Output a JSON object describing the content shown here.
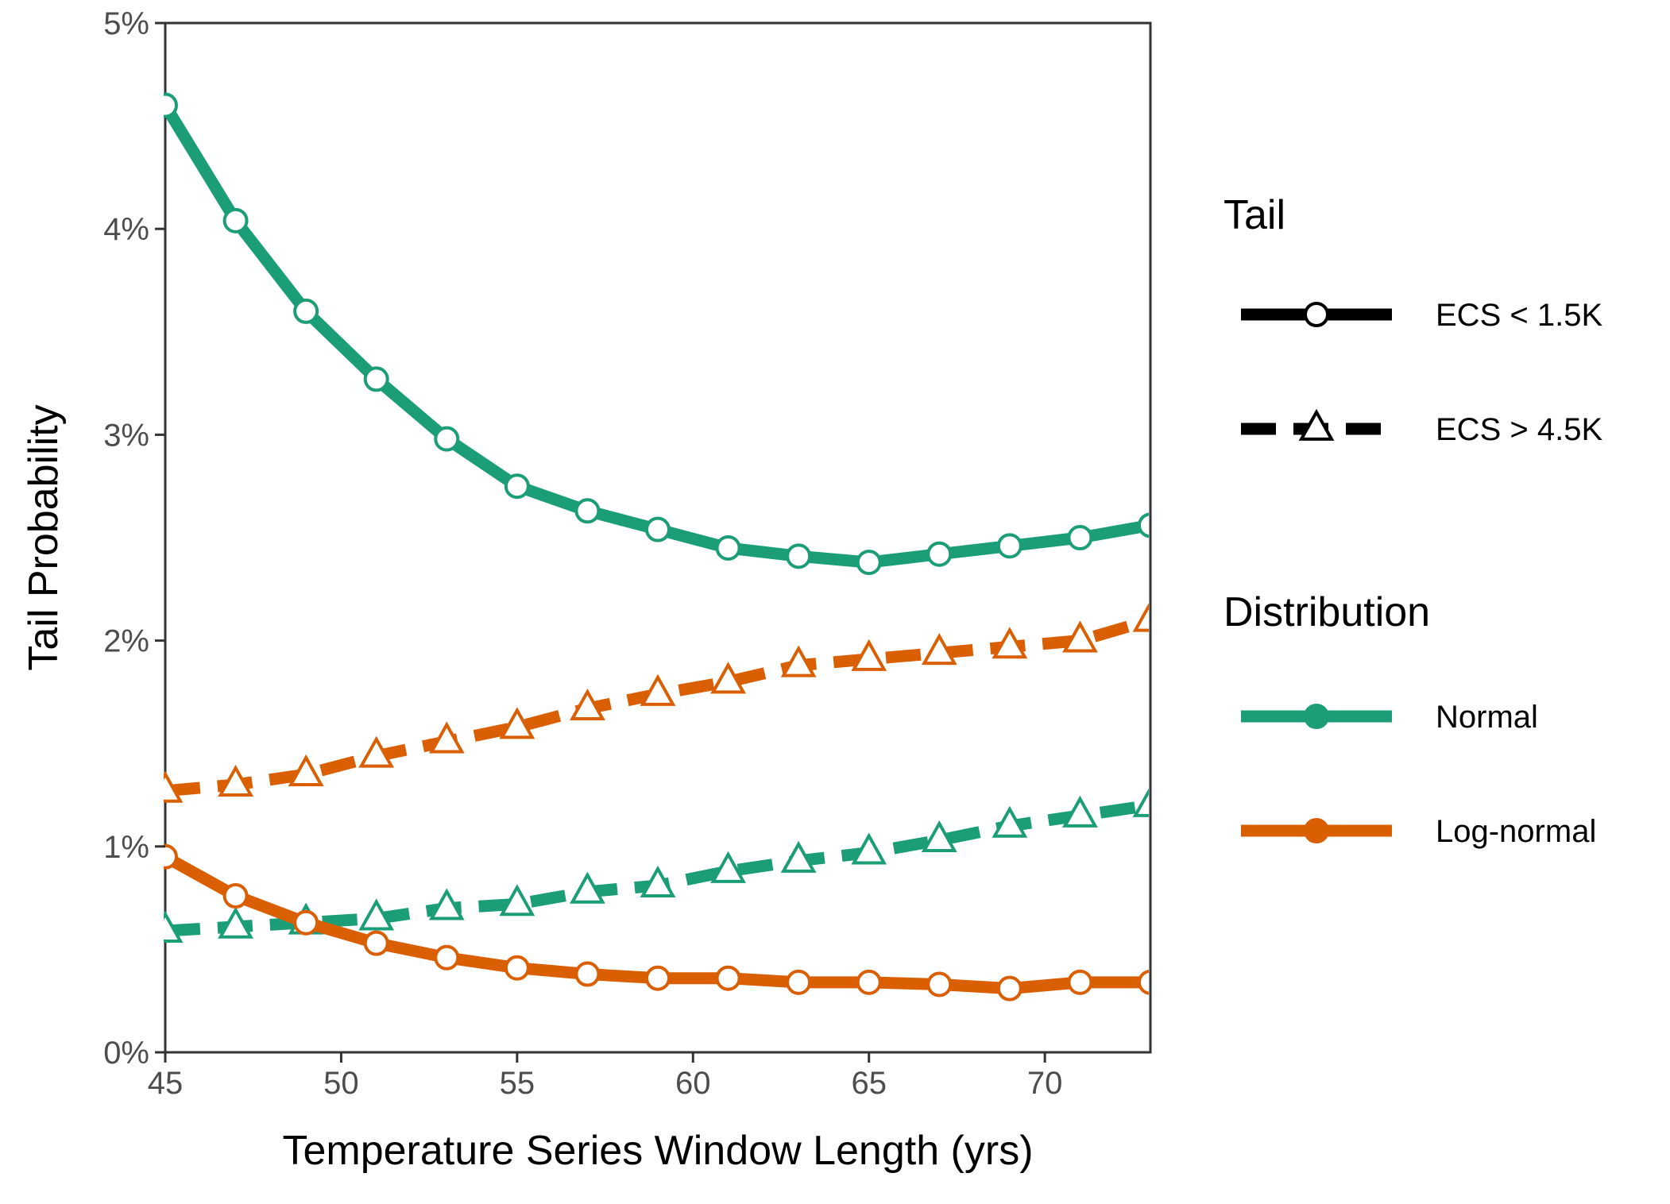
{
  "chart_data": {
    "type": "line",
    "title": "",
    "xlabel": "Temperature Series Window Length (yrs)",
    "ylabel": "Tail Probability",
    "xlim": [
      45,
      73
    ],
    "ylim": [
      0,
      5
    ],
    "x_ticks": [
      45,
      50,
      55,
      60,
      65,
      70
    ],
    "y_ticks": [
      0,
      1,
      2,
      3,
      4,
      5
    ],
    "y_tick_labels": [
      "0%",
      "1%",
      "2%",
      "3%",
      "4%",
      "5%"
    ],
    "grid": false,
    "legend_position": "right",
    "colors": {
      "Normal": "#1b9e77",
      "Log-normal": "#d95f02"
    },
    "x": [
      45,
      47,
      49,
      51,
      53,
      55,
      57,
      59,
      61,
      63,
      65,
      67,
      69,
      71,
      73
    ],
    "series": [
      {
        "distribution": "Normal",
        "tail": "ECS < 1.5K",
        "values": [
          4.6,
          4.04,
          3.6,
          3.27,
          2.98,
          2.75,
          2.63,
          2.54,
          2.45,
          2.41,
          2.38,
          2.42,
          2.46,
          2.5,
          2.56
        ]
      },
      {
        "distribution": "Log-normal",
        "tail": "ECS > 4.5K",
        "values": [
          1.27,
          1.3,
          1.35,
          1.44,
          1.51,
          1.58,
          1.67,
          1.74,
          1.8,
          1.88,
          1.91,
          1.94,
          1.97,
          2.0,
          2.1
        ]
      },
      {
        "distribution": "Normal",
        "tail": "ECS > 4.5K",
        "values": [
          0.59,
          0.61,
          0.63,
          0.65,
          0.7,
          0.72,
          0.78,
          0.81,
          0.88,
          0.93,
          0.97,
          1.03,
          1.1,
          1.15,
          1.2
        ]
      },
      {
        "distribution": "Log-normal",
        "tail": "ECS < 1.5K",
        "values": [
          0.95,
          0.76,
          0.63,
          0.53,
          0.46,
          0.41,
          0.38,
          0.36,
          0.36,
          0.34,
          0.34,
          0.33,
          0.31,
          0.34,
          0.34
        ]
      }
    ],
    "legend": {
      "tail": {
        "title": "Tail",
        "entries": [
          {
            "label": "ECS < 1.5K",
            "linetype": "solid",
            "shape": "circle"
          },
          {
            "label": "ECS > 4.5K",
            "linetype": "dashed",
            "shape": "triangle"
          }
        ]
      },
      "distribution": {
        "title": "Distribution",
        "entries": [
          {
            "label": "Normal"
          },
          {
            "label": "Log-normal"
          }
        ]
      }
    }
  }
}
